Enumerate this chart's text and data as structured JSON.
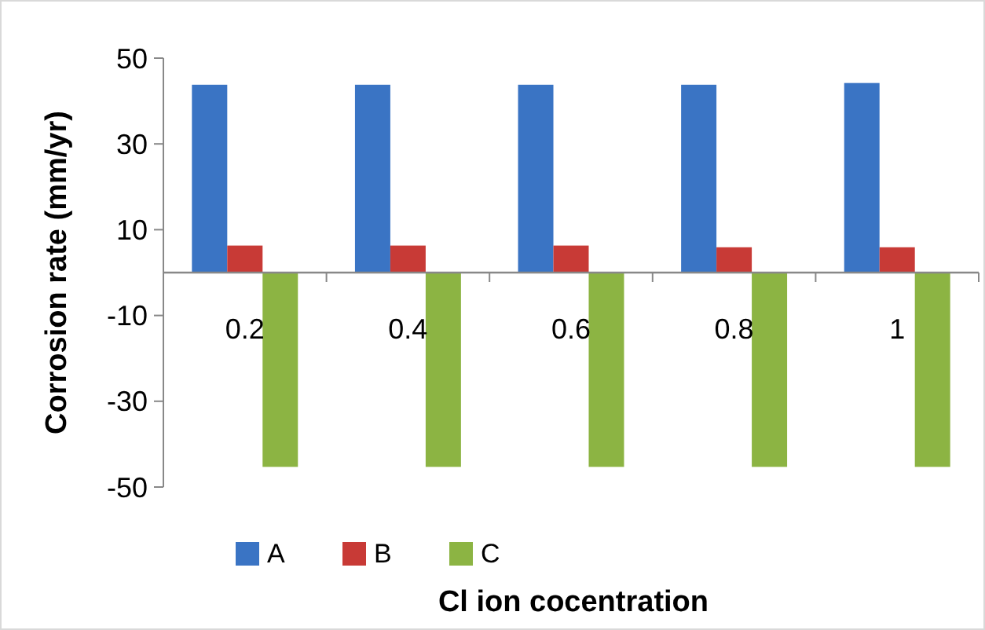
{
  "chart_data": {
    "type": "bar",
    "xlabel": "Cl ion cocentration",
    "ylabel": "Corrosion rate (mm/yr)",
    "categories": [
      "0.2",
      "0.4",
      "0.6",
      "0.8",
      "1"
    ],
    "series": [
      {
        "name": "A",
        "color": "#3a74c4",
        "values": [
          43.8,
          43.8,
          43.8,
          43.8,
          44.2
        ]
      },
      {
        "name": "B",
        "color": "#c83a36",
        "values": [
          6.3,
          6.3,
          6.3,
          5.9,
          5.9
        ]
      },
      {
        "name": "C",
        "color": "#8cb443",
        "values": [
          -45.3,
          -45.3,
          -45.3,
          -45.3,
          -45.3
        ]
      }
    ],
    "ylim": [
      -50,
      50
    ],
    "yticks": [
      -50,
      -30,
      -10,
      10,
      30,
      50
    ],
    "grid": false,
    "legend": "bottom"
  }
}
